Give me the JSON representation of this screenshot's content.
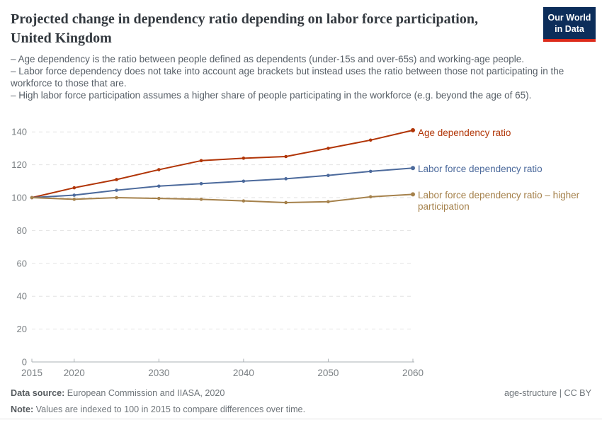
{
  "header": {
    "title": "Projected change in dependency ratio depending on labor force participation, United Kingdom",
    "logo": {
      "line1": "Our World",
      "line2": "in Data",
      "bg_color": "#0c2d5a",
      "bar_color": "#dc2a1a"
    }
  },
  "subtitle": {
    "bullets": [
      "– Age dependency is the ratio between people defined as dependents (under-15s and over-65s) and working-age people.",
      "– Labor force dependency does not take into account age brackets but instead uses the ratio between those not participating in the workforce to those that are.",
      "– High labor force participation assumes a higher share of people participating in the workforce (e.g. beyond the age of 65)."
    ]
  },
  "chart_data": {
    "type": "line",
    "title": "Projected change in dependency ratio depending on labor force participation, United Kingdom",
    "x": [
      2015,
      2020,
      2025,
      2030,
      2035,
      2040,
      2045,
      2050,
      2055,
      2060
    ],
    "series": [
      {
        "name": "Age dependency ratio",
        "color": "#b13507",
        "values": [
          100,
          106,
          111,
          117,
          122.5,
          124,
          125,
          130,
          135,
          141
        ]
      },
      {
        "name": "Labor force dependency ratio",
        "color": "#4c6a9c",
        "values": [
          100,
          101.5,
          104.5,
          107,
          108.5,
          110,
          111.5,
          113.5,
          116,
          118
        ]
      },
      {
        "name": "Labor force dependency ratio – higher participation",
        "color": "#a5814b",
        "values": [
          100,
          99,
          100,
          99.5,
          99,
          98,
          97,
          97.5,
          100.5,
          102
        ]
      }
    ],
    "xlabel": "",
    "ylabel": "",
    "ylim": [
      0,
      144
    ],
    "yticks": [
      0,
      20,
      40,
      60,
      80,
      100,
      120,
      140
    ],
    "xticks": [
      2015,
      2020,
      2030,
      2040,
      2050,
      2060
    ],
    "grid": "horizontal-dashed",
    "legend_position": "right-of-line-ends",
    "index_note": "Values indexed to 100 in 2015"
  },
  "footer": {
    "data_source_label": "Data source:",
    "data_source": " European Commission and IIASA, 2020",
    "note_label": "Note:",
    "note": " Values are indexed to 100 in 2015 to compare differences over time.",
    "rights": "age-structure | CC BY"
  }
}
